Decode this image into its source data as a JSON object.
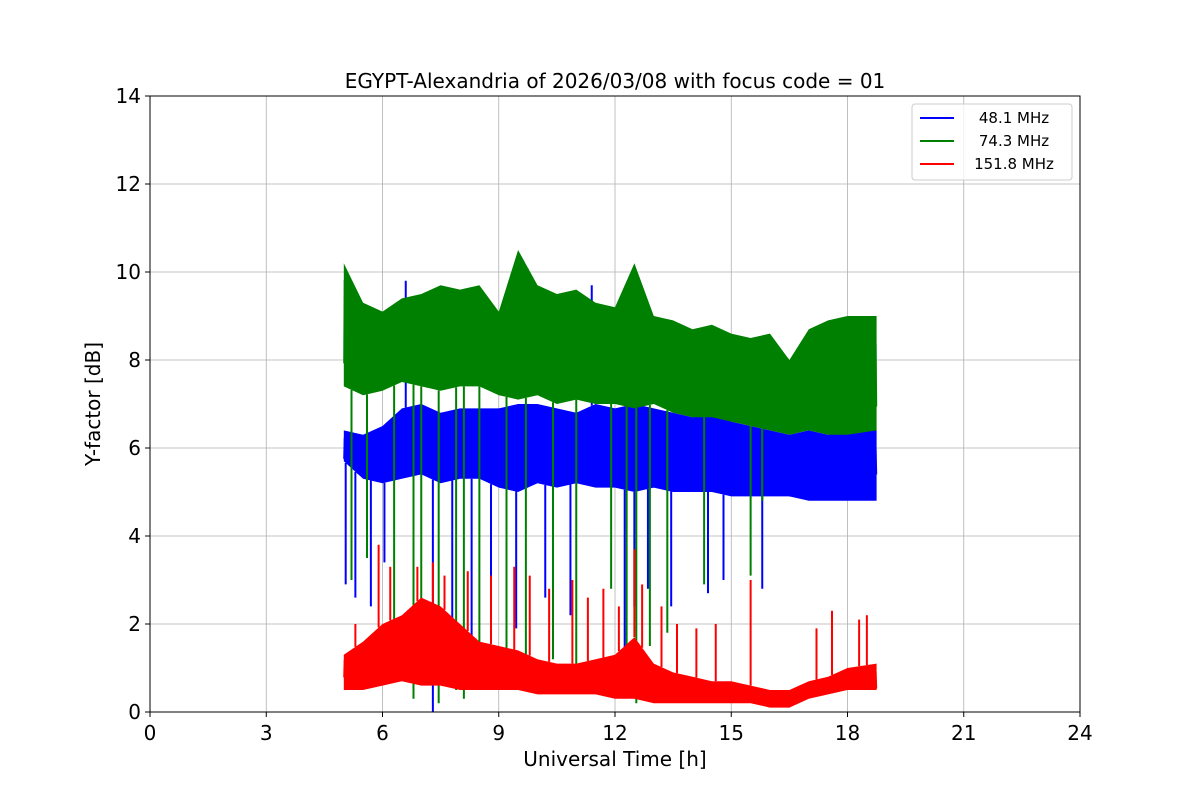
{
  "chart_data": {
    "type": "line",
    "title": "EGYPT-Alexandria of 2026/03/08 with focus code = 01",
    "xlabel": "Universal Time [h]",
    "ylabel": "Y-factor [dB]",
    "xlim": [
      0,
      24
    ],
    "ylim": [
      0,
      14
    ],
    "xticks": [
      0,
      3,
      6,
      9,
      12,
      15,
      18,
      21,
      24
    ],
    "yticks": [
      0,
      2,
      4,
      6,
      8,
      10,
      12,
      14
    ],
    "grid": true,
    "legend_position": "top-right",
    "series": [
      {
        "name": " 48.1 MHz",
        "color": "#0000ff",
        "x": [
          5.0,
          5.5,
          6.0,
          6.5,
          7.0,
          7.5,
          8.0,
          8.5,
          9.0,
          9.5,
          10.0,
          10.5,
          11.0,
          11.5,
          12.0,
          12.5,
          13.0,
          13.5,
          14.0,
          14.5,
          15.0,
          15.5,
          16.0,
          16.5,
          17.0,
          17.5,
          18.0,
          18.75
        ],
        "low": [
          5.7,
          5.3,
          5.2,
          5.3,
          5.4,
          5.2,
          5.3,
          5.3,
          5.1,
          5.0,
          5.2,
          5.1,
          5.2,
          5.1,
          5.1,
          5.0,
          5.1,
          5.0,
          5.0,
          5.0,
          4.9,
          4.9,
          4.9,
          4.9,
          4.8,
          4.8,
          4.8,
          4.8
        ],
        "high": [
          6.4,
          6.3,
          6.5,
          6.9,
          7.0,
          6.8,
          6.9,
          6.9,
          6.9,
          7.0,
          7.0,
          6.9,
          6.8,
          7.0,
          6.9,
          7.0,
          6.9,
          6.8,
          6.7,
          7.0,
          6.6,
          6.5,
          6.4,
          6.3,
          6.4,
          6.3,
          6.4,
          6.4
        ],
        "spikes": [
          [
            5.05,
            2.9
          ],
          [
            5.3,
            2.6
          ],
          [
            5.7,
            2.4
          ],
          [
            6.05,
            3.4
          ],
          [
            6.6,
            9.8
          ],
          [
            7.3,
            0.0
          ],
          [
            7.8,
            1.4
          ],
          [
            8.3,
            0.9
          ],
          [
            8.8,
            1.8
          ],
          [
            9.45,
            1.9
          ],
          [
            10.2,
            2.6
          ],
          [
            10.85,
            2.2
          ],
          [
            11.4,
            9.7
          ],
          [
            12.25,
            0.8
          ],
          [
            12.5,
            2.4
          ],
          [
            12.85,
            2.8
          ],
          [
            13.45,
            2.4
          ],
          [
            14.4,
            2.7
          ],
          [
            14.8,
            3.0
          ],
          [
            15.8,
            2.8
          ]
        ]
      },
      {
        "name": " 74.3 MHz",
        "color": "#008000",
        "x": [
          5.0,
          5.5,
          6.0,
          6.5,
          7.0,
          7.5,
          8.0,
          8.5,
          9.0,
          9.5,
          10.0,
          10.5,
          11.0,
          11.5,
          12.0,
          12.5,
          13.0,
          13.5,
          14.0,
          14.5,
          15.0,
          15.5,
          16.0,
          16.5,
          17.0,
          17.5,
          18.0,
          18.75
        ],
        "low": [
          7.4,
          7.2,
          7.3,
          7.5,
          7.4,
          7.3,
          7.4,
          7.4,
          7.2,
          7.1,
          7.2,
          7.0,
          7.1,
          7.0,
          7.0,
          6.9,
          7.0,
          6.8,
          6.7,
          6.7,
          6.6,
          6.5,
          6.4,
          6.3,
          6.4,
          6.3,
          6.3,
          6.4
        ],
        "high": [
          10.2,
          9.3,
          9.1,
          9.4,
          9.5,
          9.7,
          9.6,
          9.7,
          9.1,
          10.5,
          9.7,
          9.5,
          9.6,
          9.3,
          9.2,
          10.2,
          9.0,
          8.9,
          8.7,
          8.8,
          8.6,
          8.5,
          8.6,
          8.0,
          8.7,
          8.9,
          9.0,
          9.0
        ],
        "spikes": [
          [
            5.2,
            3.0
          ],
          [
            5.6,
            3.5
          ],
          [
            6.3,
            1.0
          ],
          [
            6.8,
            0.3
          ],
          [
            7.0,
            0.8
          ],
          [
            7.45,
            0.2
          ],
          [
            7.9,
            0.5
          ],
          [
            8.1,
            0.3
          ],
          [
            8.5,
            0.9
          ],
          [
            9.2,
            0.8
          ],
          [
            9.7,
            1.0
          ],
          [
            10.4,
            1.2
          ],
          [
            11.0,
            1.0
          ],
          [
            11.9,
            2.8
          ],
          [
            12.3,
            0.6
          ],
          [
            12.55,
            0.2
          ],
          [
            12.9,
            1.5
          ],
          [
            13.35,
            1.8
          ],
          [
            14.3,
            2.9
          ],
          [
            15.5,
            3.1
          ],
          [
            15.8,
            4.8
          ]
        ]
      },
      {
        "name": " 151.8 MHz",
        "color": "#ff0000",
        "x": [
          5.0,
          5.5,
          6.0,
          6.5,
          7.0,
          7.5,
          8.0,
          8.5,
          9.0,
          9.5,
          10.0,
          10.5,
          11.0,
          11.5,
          12.0,
          12.5,
          13.0,
          13.5,
          14.0,
          14.5,
          15.0,
          15.5,
          16.0,
          16.5,
          17.0,
          17.5,
          18.0,
          18.75
        ],
        "low": [
          0.5,
          0.5,
          0.6,
          0.7,
          0.6,
          0.6,
          0.5,
          0.5,
          0.5,
          0.5,
          0.4,
          0.4,
          0.4,
          0.4,
          0.3,
          0.3,
          0.2,
          0.2,
          0.2,
          0.2,
          0.2,
          0.2,
          0.1,
          0.1,
          0.3,
          0.4,
          0.5,
          0.5
        ],
        "high": [
          1.3,
          1.6,
          2.0,
          2.2,
          2.6,
          2.4,
          2.0,
          1.6,
          1.5,
          1.4,
          1.2,
          1.1,
          1.1,
          1.2,
          1.3,
          1.7,
          1.1,
          0.9,
          0.8,
          0.7,
          0.7,
          0.6,
          0.5,
          0.5,
          0.7,
          0.8,
          1.0,
          1.1
        ],
        "spikes": [
          [
            5.3,
            2.0
          ],
          [
            5.9,
            3.8
          ],
          [
            6.2,
            3.3
          ],
          [
            6.9,
            3.3
          ],
          [
            7.3,
            3.4
          ],
          [
            7.6,
            3.1
          ],
          [
            8.2,
            3.2
          ],
          [
            8.8,
            3.1
          ],
          [
            9.4,
            3.3
          ],
          [
            9.8,
            3.1
          ],
          [
            10.3,
            2.8
          ],
          [
            10.9,
            3.0
          ],
          [
            11.3,
            2.6
          ],
          [
            11.7,
            2.8
          ],
          [
            12.1,
            2.4
          ],
          [
            12.5,
            3.7
          ],
          [
            12.7,
            2.9
          ],
          [
            13.2,
            2.4
          ],
          [
            13.6,
            2.0
          ],
          [
            14.1,
            1.9
          ],
          [
            14.6,
            2.0
          ],
          [
            15.5,
            3.0
          ],
          [
            17.2,
            1.9
          ],
          [
            17.6,
            2.3
          ],
          [
            18.3,
            2.1
          ],
          [
            18.5,
            2.2
          ]
        ]
      }
    ]
  }
}
